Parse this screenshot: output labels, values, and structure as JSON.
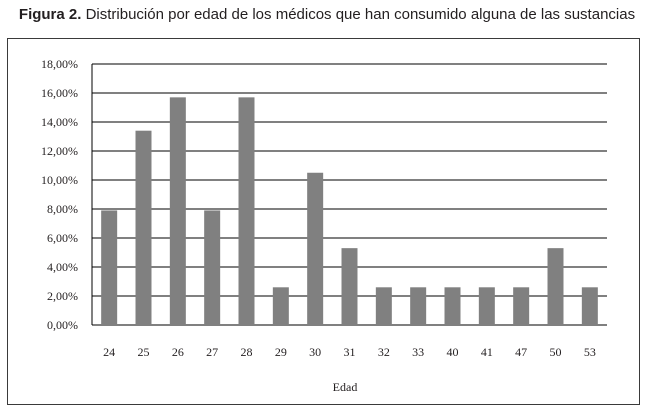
{
  "figure": {
    "title_lead": "Figura 2.",
    "title_rest": " Distribución por edad de los médicos que han consumido alguna de las sustancias"
  },
  "chart_data": {
    "type": "bar",
    "categories": [
      "24",
      "25",
      "26",
      "27",
      "28",
      "29",
      "30",
      "31",
      "32",
      "33",
      "40",
      "41",
      "47",
      "50",
      "53"
    ],
    "values": [
      7.9,
      13.4,
      15.7,
      7.9,
      15.7,
      2.6,
      10.5,
      5.3,
      2.6,
      2.6,
      2.6,
      2.6,
      2.6,
      5.3,
      2.6
    ],
    "xlabel": "Edad",
    "ylabel": "",
    "ylim": [
      0,
      18
    ],
    "yticks": [
      "0,00%",
      "2,00%",
      "4,00%",
      "6,00%",
      "8,00%",
      "10,00%",
      "12,00%",
      "14,00%",
      "16,00%",
      "18,00%"
    ],
    "grid": true,
    "bar_color": "#808080",
    "grid_color": "#000000"
  }
}
